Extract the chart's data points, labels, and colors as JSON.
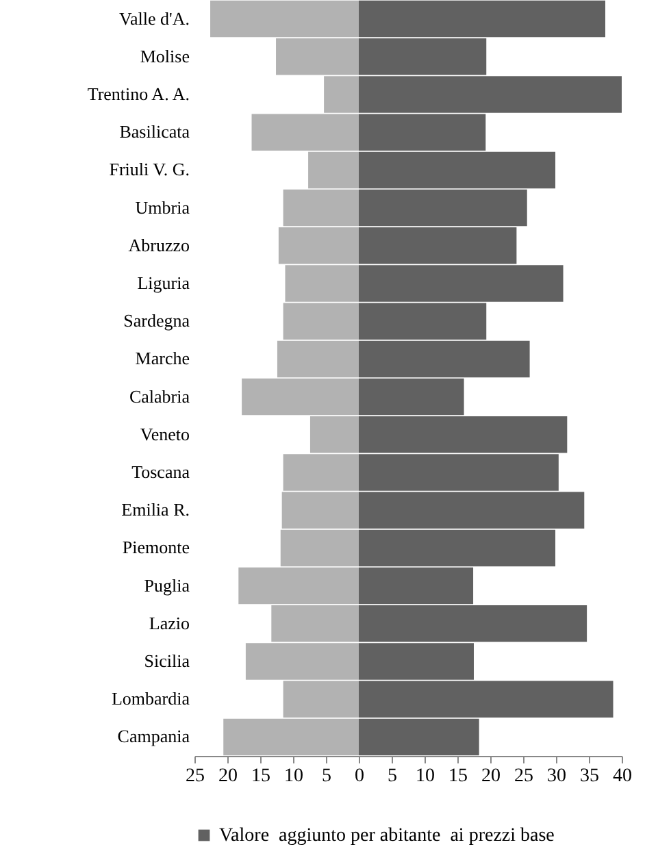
{
  "chart_data": {
    "type": "bar",
    "orientation": "horizontal",
    "stacked": true,
    "categories": [
      "Valle d'A.",
      "Molise",
      "Trentino A. A.",
      "Basilicata",
      "Friuli V. G.",
      "Umbria",
      "Abruzzo",
      "Liguria",
      "Sardegna",
      "Marche",
      "Calabria",
      "Veneto",
      "Toscana",
      "Emilia R.",
      "Piemonte",
      "Puglia",
      "Lazio",
      "Sicilia",
      "Lombardia",
      "Campania"
    ],
    "series": [
      {
        "color": "#b2b2b2",
        "values": [
          -22.6,
          -12.6,
          -5.3,
          -16.3,
          -7.7,
          -11.5,
          -12.2,
          -11.2,
          -11.5,
          -12.4,
          -17.8,
          -7.4,
          -11.5,
          -11.7,
          -11.9,
          -18.3,
          -13.3,
          -17.2,
          -11.5,
          -20.6
        ]
      },
      {
        "name": "Valore  aggiunto per abitante  ai prezzi base",
        "color": "#616161",
        "values": [
          37.5,
          19.4,
          40,
          19.3,
          29.9,
          25.6,
          24.0,
          31.1,
          19.4,
          26.0,
          16.0,
          31.7,
          30.4,
          34.3,
          29.9,
          17.4,
          34.7,
          17.5,
          38.7,
          18.3
        ]
      }
    ],
    "xlim": [
      -25,
      40
    ],
    "xticks": [
      {
        "value": -25,
        "label": "25"
      },
      {
        "value": -20,
        "label": "20"
      },
      {
        "value": -15,
        "label": "15"
      },
      {
        "value": -10,
        "label": "10"
      },
      {
        "value": -5,
        "label": "5"
      },
      0,
      5,
      10,
      15,
      20,
      25,
      30,
      35,
      40
    ],
    "legend": "bottom"
  }
}
